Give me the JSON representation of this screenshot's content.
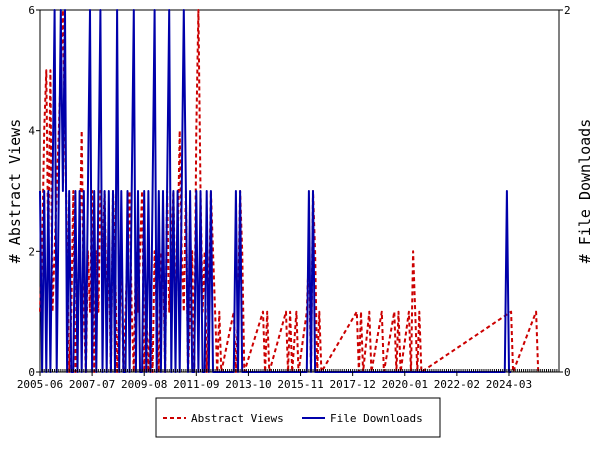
{
  "chart_data": {
    "type": "line",
    "title": "",
    "xlabel": "",
    "ylabel": "# Abstract Views",
    "ylabel_right": "# File Downloads",
    "x_tick_labels": [
      "2005-06",
      "2007-07",
      "2009-08",
      "2011-09",
      "2013-10",
      "2015-11",
      "2017-12",
      "2020-01",
      "2022-02",
      "2024-03"
    ],
    "x_range": [
      "2005-06",
      "2026-03"
    ],
    "y_left_ticks": [
      "0",
      "2",
      "4",
      "6"
    ],
    "y_left_range": [
      0,
      6
    ],
    "y_right_ticks": [
      "0",
      "2"
    ],
    "y_right_range": [
      0,
      2
    ],
    "grid": false,
    "legend_position": "bottom-center",
    "series": [
      {
        "name": "Abstract Views",
        "axis": "left",
        "color": "#cc0000",
        "style": "dashed",
        "points": [
          [
            "2005-06",
            1
          ],
          [
            "2005-07",
            2
          ],
          [
            "2005-08",
            4
          ],
          [
            "2005-09",
            5
          ],
          [
            "2005-10",
            2
          ],
          [
            "2005-11",
            5
          ],
          [
            "2005-12",
            1
          ],
          [
            "2006-01",
            2
          ],
          [
            "2006-02",
            3
          ],
          [
            "2006-03",
            4
          ],
          [
            "2006-04",
            5
          ],
          [
            "2006-05",
            6
          ],
          [
            "2006-06",
            4
          ],
          [
            "2006-07",
            2
          ],
          [
            "2006-08",
            0
          ],
          [
            "2006-09",
            1
          ],
          [
            "2006-10",
            3
          ],
          [
            "2006-11",
            0
          ],
          [
            "2006-12",
            1
          ],
          [
            "2007-01",
            2
          ],
          [
            "2007-02",
            4
          ],
          [
            "2007-03",
            1
          ],
          [
            "2007-04",
            0
          ],
          [
            "2007-05",
            2
          ],
          [
            "2007-06",
            1
          ],
          [
            "2007-07",
            3
          ],
          [
            "2007-08",
            0
          ],
          [
            "2007-09",
            2
          ],
          [
            "2007-10",
            1
          ],
          [
            "2007-11",
            3
          ],
          [
            "2007-12",
            2
          ],
          [
            "2008-01",
            3
          ],
          [
            "2008-02",
            1
          ],
          [
            "2008-03",
            2
          ],
          [
            "2008-04",
            0
          ],
          [
            "2008-05",
            3
          ],
          [
            "2008-06",
            2
          ],
          [
            "2008-07",
            0
          ],
          [
            "2008-08",
            1
          ],
          [
            "2008-09",
            2
          ],
          [
            "2008-10",
            0
          ],
          [
            "2008-11",
            1
          ],
          [
            "2008-12",
            2
          ],
          [
            "2009-01",
            3
          ],
          [
            "2009-02",
            1
          ],
          [
            "2009-03",
            0
          ],
          [
            "2009-04",
            2
          ],
          [
            "2009-05",
            1
          ],
          [
            "2009-06",
            2
          ],
          [
            "2009-07",
            3
          ],
          [
            "2009-08",
            0
          ],
          [
            "2009-09",
            1
          ],
          [
            "2009-10",
            0
          ],
          [
            "2009-11",
            1
          ],
          [
            "2009-12",
            0
          ],
          [
            "2010-01",
            2
          ],
          [
            "2010-02",
            1
          ],
          [
            "2010-03",
            0
          ],
          [
            "2010-04",
            2
          ],
          [
            "2010-05",
            2
          ],
          [
            "2010-06",
            0
          ],
          [
            "2010-07",
            3
          ],
          [
            "2010-08",
            1
          ],
          [
            "2010-09",
            2
          ],
          [
            "2010-10",
            3
          ],
          [
            "2010-11",
            1
          ],
          [
            "2010-12",
            2
          ],
          [
            "2011-01",
            4
          ],
          [
            "2011-02",
            2
          ],
          [
            "2011-03",
            1
          ],
          [
            "2011-04",
            3
          ],
          [
            "2011-05",
            0
          ],
          [
            "2011-06",
            1
          ],
          [
            "2011-07",
            2
          ],
          [
            "2011-08",
            0
          ],
          [
            "2011-09",
            4
          ],
          [
            "2011-10",
            6
          ],
          [
            "2011-11",
            3
          ],
          [
            "2011-12",
            1
          ],
          [
            "2012-01",
            2
          ],
          [
            "2012-02",
            0
          ],
          [
            "2012-03",
            1
          ],
          [
            "2012-04",
            3
          ],
          [
            "2012-05",
            2
          ],
          [
            "2012-06",
            1
          ],
          [
            "2012-07",
            0
          ],
          [
            "2012-08",
            1
          ],
          [
            "2012-09",
            0
          ],
          [
            "2013-03",
            1
          ],
          [
            "2013-04",
            0
          ],
          [
            "2013-05",
            1
          ],
          [
            "2013-06",
            3
          ],
          [
            "2013-07",
            2
          ],
          [
            "2013-08",
            0
          ],
          [
            "2014-05",
            1
          ],
          [
            "2014-06",
            0
          ],
          [
            "2014-07",
            1
          ],
          [
            "2014-08",
            0
          ],
          [
            "2015-04",
            1
          ],
          [
            "2015-05",
            0
          ],
          [
            "2015-06",
            1
          ],
          [
            "2015-07",
            0
          ],
          [
            "2015-09",
            1
          ],
          [
            "2015-10",
            0
          ],
          [
            "2016-02",
            1
          ],
          [
            "2016-03",
            2
          ],
          [
            "2016-04",
            0
          ],
          [
            "2016-05",
            3
          ],
          [
            "2016-06",
            2
          ],
          [
            "2016-07",
            0
          ],
          [
            "2016-08",
            1
          ],
          [
            "2016-09",
            0
          ],
          [
            "2018-02",
            1
          ],
          [
            "2018-03",
            0
          ],
          [
            "2018-04",
            1
          ],
          [
            "2018-05",
            0
          ],
          [
            "2018-08",
            1
          ],
          [
            "2018-09",
            0
          ],
          [
            "2019-02",
            1
          ],
          [
            "2019-03",
            0
          ],
          [
            "2019-08",
            1
          ],
          [
            "2019-09",
            0
          ],
          [
            "2019-10",
            1
          ],
          [
            "2019-11",
            0
          ],
          [
            "2020-03",
            1
          ],
          [
            "2020-04",
            0
          ],
          [
            "2020-05",
            2
          ],
          [
            "2020-06",
            1
          ],
          [
            "2020-07",
            0
          ],
          [
            "2020-08",
            1
          ],
          [
            "2020-09",
            0
          ],
          [
            "2024-04",
            1
          ],
          [
            "2024-05",
            0
          ],
          [
            "2025-04",
            1
          ],
          [
            "2025-05",
            0
          ]
        ]
      },
      {
        "name": "File Downloads",
        "axis": "right",
        "color": "#0000aa",
        "style": "solid",
        "points": [
          [
            "2005-06",
            1
          ],
          [
            "2005-07",
            0
          ],
          [
            "2005-08",
            1
          ],
          [
            "2005-09",
            0
          ],
          [
            "2005-10",
            1
          ],
          [
            "2005-11",
            0
          ],
          [
            "2005-12",
            1
          ],
          [
            "2006-01",
            2
          ],
          [
            "2006-02",
            0
          ],
          [
            "2006-03",
            1
          ],
          [
            "2006-04",
            2
          ],
          [
            "2006-05",
            1
          ],
          [
            "2006-06",
            2
          ],
          [
            "2006-07",
            0
          ],
          [
            "2006-08",
            1
          ],
          [
            "2006-09",
            0
          ],
          [
            "2006-10",
            0
          ],
          [
            "2006-11",
            1
          ],
          [
            "2006-12",
            0
          ],
          [
            "2007-01",
            1
          ],
          [
            "2007-02",
            0
          ],
          [
            "2007-03",
            1
          ],
          [
            "2007-04",
            0
          ],
          [
            "2007-05",
            1
          ],
          [
            "2007-06",
            2
          ],
          [
            "2007-07",
            0
          ],
          [
            "2007-08",
            1
          ],
          [
            "2007-09",
            0
          ],
          [
            "2007-10",
            1
          ],
          [
            "2007-11",
            2
          ],
          [
            "2007-12",
            0
          ],
          [
            "2008-01",
            1
          ],
          [
            "2008-02",
            0
          ],
          [
            "2008-03",
            1
          ],
          [
            "2008-04",
            0
          ],
          [
            "2008-05",
            1
          ],
          [
            "2008-06",
            0
          ],
          [
            "2008-07",
            2
          ],
          [
            "2008-08",
            0
          ],
          [
            "2008-09",
            1
          ],
          [
            "2008-10",
            0
          ],
          [
            "2008-11",
            0
          ],
          [
            "2008-12",
            1
          ],
          [
            "2009-01",
            0
          ],
          [
            "2009-02",
            1
          ],
          [
            "2009-03",
            2
          ],
          [
            "2009-04",
            0
          ],
          [
            "2009-05",
            1
          ],
          [
            "2009-06",
            0
          ],
          [
            "2009-07",
            0
          ],
          [
            "2009-08",
            1
          ],
          [
            "2009-09",
            0
          ],
          [
            "2009-10",
            1
          ],
          [
            "2009-11",
            0
          ],
          [
            "2009-12",
            1
          ],
          [
            "2010-01",
            2
          ],
          [
            "2010-02",
            0
          ],
          [
            "2010-03",
            1
          ],
          [
            "2010-04",
            0
          ],
          [
            "2010-05",
            1
          ],
          [
            "2010-06",
            0
          ],
          [
            "2010-07",
            1
          ],
          [
            "2010-08",
            2
          ],
          [
            "2010-09",
            0
          ],
          [
            "2010-10",
            1
          ],
          [
            "2010-11",
            0
          ],
          [
            "2010-12",
            1
          ],
          [
            "2011-01",
            0
          ],
          [
            "2011-02",
            1
          ],
          [
            "2011-03",
            2
          ],
          [
            "2011-04",
            1
          ],
          [
            "2011-05",
            0
          ],
          [
            "2011-06",
            1
          ],
          [
            "2011-07",
            0
          ],
          [
            "2011-08",
            0
          ],
          [
            "2011-09",
            1
          ],
          [
            "2011-10",
            0
          ],
          [
            "2011-11",
            1
          ],
          [
            "2011-12",
            0
          ],
          [
            "2012-01",
            0
          ],
          [
            "2012-02",
            1
          ],
          [
            "2012-03",
            0
          ],
          [
            "2012-04",
            1
          ],
          [
            "2012-05",
            0
          ],
          [
            "2013-03",
            0
          ],
          [
            "2013-04",
            1
          ],
          [
            "2013-05",
            0
          ],
          [
            "2013-06",
            1
          ],
          [
            "2013-07",
            0
          ],
          [
            "2016-02",
            0
          ],
          [
            "2016-03",
            1
          ],
          [
            "2016-04",
            0
          ],
          [
            "2016-05",
            1
          ],
          [
            "2016-06",
            0
          ],
          [
            "2024-01",
            0
          ],
          [
            "2024-02",
            1
          ],
          [
            "2024-03",
            0
          ],
          [
            "2024-04",
            0
          ]
        ]
      }
    ]
  }
}
